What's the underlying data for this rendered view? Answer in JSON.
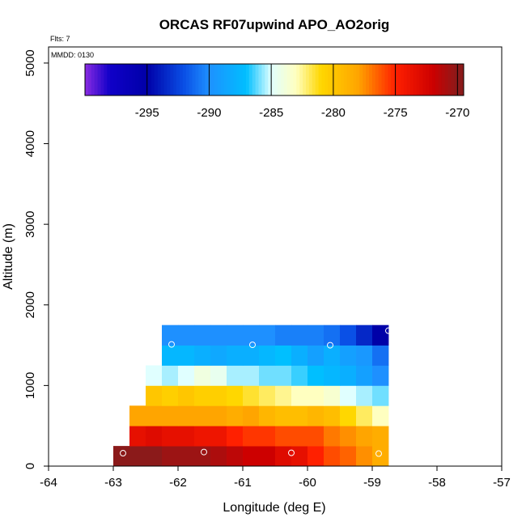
{
  "chart_data": {
    "type": "heatmap",
    "title": "ORCAS RF07upwind APO_AO2orig",
    "flights_label": "Flts: 7",
    "date_label": "MMDD: 0130",
    "xlabel": "Longitude (deg E)",
    "ylabel": "Altitude (m)",
    "xlim": [
      -64,
      -57
    ],
    "ylim": [
      0,
      5200
    ],
    "x_ticks": [
      -64,
      -63,
      -62,
      -61,
      -60,
      -59,
      -58,
      -57
    ],
    "y_ticks": [
      0,
      1000,
      2000,
      3000,
      4000,
      5000
    ],
    "colorbar": {
      "range": [
        -300,
        -269.5
      ],
      "ticks": [
        -295,
        -290,
        -285,
        -280,
        -275,
        -270
      ],
      "stops": [
        {
          "v": -300,
          "c": "#8a2be2"
        },
        {
          "v": -298,
          "c": "#1000c8"
        },
        {
          "v": -295,
          "c": "#0000a8"
        },
        {
          "v": -292,
          "c": "#0a50e6"
        },
        {
          "v": -290,
          "c": "#1e90ff"
        },
        {
          "v": -287,
          "c": "#00bfff"
        },
        {
          "v": -285,
          "c": "#e0ffff"
        },
        {
          "v": -283,
          "c": "#ffffc0"
        },
        {
          "v": -281,
          "c": "#ffd700"
        },
        {
          "v": -278,
          "c": "#ffa500"
        },
        {
          "v": -275,
          "c": "#ff2000"
        },
        {
          "v": -272,
          "c": "#cd0000"
        },
        {
          "v": -270,
          "c": "#8b1a1a"
        },
        {
          "v": -269.5,
          "c": "#8b1a1a"
        }
      ]
    },
    "cells": {
      "x_start": -63.0,
      "x_step": 0.25,
      "y_step": 250,
      "rows": [
        {
          "y0": 0,
          "x0": -63.0,
          "values": [
            -270.0,
            -270.0,
            -270.0,
            -270.5,
            -270.5,
            -270.5,
            -271.0,
            -271.5,
            -272.0,
            -272.0,
            -273.0,
            -273.5,
            -275.0,
            -276.0,
            -276.5,
            -277.5,
            -278.5
          ]
        },
        {
          "y0": 250,
          "x0": -62.75,
          "values": [
            -273.5,
            -273.0,
            -273.5,
            -273.5,
            -274.0,
            -274.0,
            -275.0,
            -275.5,
            -275.5,
            -276.0,
            -276.0,
            -276.0,
            -277.0,
            -277.5,
            -278.0,
            -278.5
          ]
        },
        {
          "y0": 500,
          "x0": -62.75,
          "values": [
            -278.0,
            -278.0,
            -278.0,
            -278.0,
            -278.0,
            -278.0,
            -278.5,
            -278.0,
            -279.0,
            -279.5,
            -279.5,
            -279.0,
            -279.5,
            -281.0,
            -282.0,
            -283.0
          ]
        },
        {
          "y0": 750,
          "x0": -62.5,
          "values": [
            -280.0,
            -280.5,
            -280.0,
            -280.5,
            -280.5,
            -281.0,
            -281.5,
            -282.0,
            -282.5,
            -283.0,
            -283.0,
            -283.5,
            -285.0,
            -285.5,
            -286.0
          ]
        },
        {
          "y0": 1000,
          "x0": -62.5,
          "values": [
            -285.0,
            -285.5,
            -285.0,
            -284.0,
            -284.5,
            -285.5,
            -285.5,
            -286.0,
            -286.0,
            -286.5,
            -287.0,
            -287.5,
            -288.0,
            -289.0,
            -290.0
          ]
        },
        {
          "y0": 1250,
          "x0": -62.25,
          "values": [
            -287.5,
            -287.5,
            -288.0,
            -288.5,
            -288.0,
            -288.0,
            -287.5,
            -287.0,
            -288.0,
            -289.0,
            -288.0,
            -289.0,
            -289.5,
            -291.0
          ]
        },
        {
          "y0": 1500,
          "x0": -62.25,
          "values": [
            -290.0,
            -290.0,
            -290.0,
            -290.0,
            -290.0,
            -290.0,
            -290.0,
            -290.5,
            -290.5,
            -290.5,
            -291.0,
            -292.0,
            -293.5,
            -295.0
          ]
        }
      ]
    },
    "samples": [
      {
        "lon": -62.85,
        "alt": 160
      },
      {
        "lon": -61.6,
        "alt": 175
      },
      {
        "lon": -60.25,
        "alt": 165
      },
      {
        "lon": -58.9,
        "alt": 155
      },
      {
        "lon": -62.1,
        "alt": 1510
      },
      {
        "lon": -60.85,
        "alt": 1505
      },
      {
        "lon": -59.65,
        "alt": 1500
      },
      {
        "lon": -58.75,
        "alt": 1680
      }
    ]
  }
}
